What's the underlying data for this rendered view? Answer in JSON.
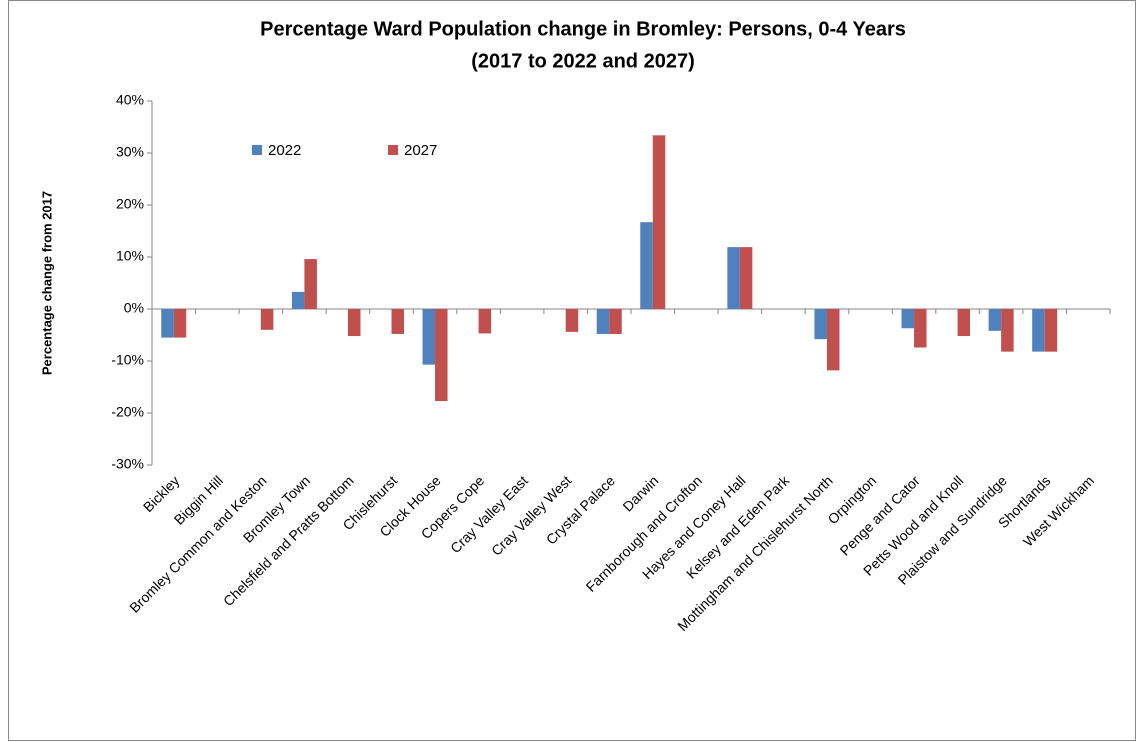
{
  "chart_data": {
    "type": "bar",
    "title": [
      "Percentage Ward Population change in Bromley: Persons, 0-4 Years",
      "(2017 to 2022 and 2027)"
    ],
    "y_label": "Percentage change from 2017",
    "categories": [
      "Bickley",
      "Biggin Hill",
      "Bromley Common and Keston",
      "Bromley Town",
      "Chelsfield and Pratts Bottom",
      "Chislehurst",
      "Clock House",
      "Copers Cope",
      "Cray Valley East",
      "Cray Valley West",
      "Crystal Palace",
      "Darwin",
      "Farnborough and Crofton",
      "Hayes and Coney Hall",
      "Kelsey and Eden Park",
      "Mottingham and Chislehurst North",
      "Orpington",
      "Penge and Cator",
      "Petts Wood and Knoll",
      "Plaistow and Sundridge",
      "Shortlands",
      "West Wickham"
    ],
    "series": [
      {
        "name": "2022",
        "color": "#4f81bd",
        "values": [
          -5.5,
          0,
          0,
          3.3,
          0,
          0,
          -10.7,
          0,
          0,
          0,
          -4.8,
          16.7,
          0,
          11.9,
          0,
          -5.8,
          0,
          -3.7,
          0,
          -4.2,
          -8.2,
          0
        ]
      },
      {
        "name": "2027",
        "color": "#c0504d",
        "values": [
          -5.5,
          0,
          -4.0,
          9.6,
          -5.2,
          -4.8,
          -17.7,
          -4.7,
          0,
          -4.4,
          -4.8,
          33.4,
          0,
          11.9,
          0,
          -11.8,
          0,
          -7.4,
          -5.2,
          -8.2,
          -8.2,
          0
        ]
      }
    ],
    "ylim": [
      -30,
      40
    ],
    "yticks": [
      {
        "value": -30,
        "label": "-30%"
      },
      {
        "value": -20,
        "label": "-20%"
      },
      {
        "value": -10,
        "label": "-10%"
      },
      {
        "value": 0,
        "label": "0%"
      },
      {
        "value": 10,
        "label": "10%"
      },
      {
        "value": 20,
        "label": "20%"
      },
      {
        "value": 30,
        "label": "30%"
      },
      {
        "value": 40,
        "label": "40%"
      }
    ],
    "grid": false,
    "legend": "top-left"
  }
}
